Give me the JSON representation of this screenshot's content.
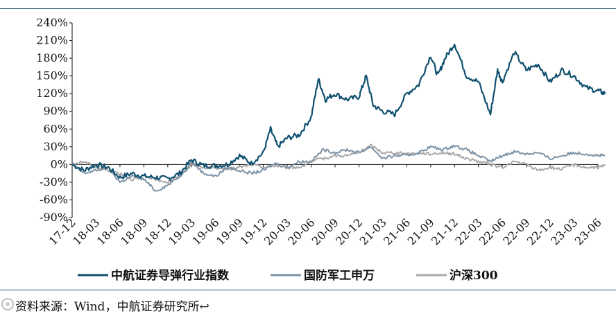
{
  "chart_data": {
    "type": "line",
    "title": "",
    "xlabel": "",
    "ylabel": "",
    "y_ticks": [
      "240%",
      "210%",
      "180%",
      "150%",
      "120%",
      "90%",
      "60%",
      "30%",
      "0%",
      "-30%",
      "-60%",
      "-90%"
    ],
    "ylim": [
      -90,
      240
    ],
    "x_ticks": [
      "17-12",
      "18-03",
      "18-06",
      "18-09",
      "18-12",
      "19-03",
      "19-06",
      "19-09",
      "19-12",
      "20-03",
      "20-06",
      "20-09",
      "20-12",
      "21-03",
      "21-06",
      "21-09",
      "21-12",
      "22-03",
      "22-06",
      "22-09",
      "22-12",
      "23-03",
      "23-06"
    ],
    "legend_position": "bottom",
    "grid": false,
    "series": [
      {
        "name": "中航证券导弹行业指数",
        "color": "#0f4f6f",
        "values": [
          [
            0,
            0
          ],
          [
            0.5,
            -10
          ],
          [
            1,
            0
          ],
          [
            1.5,
            -5
          ],
          [
            2,
            -22
          ],
          [
            2.5,
            -15
          ],
          [
            3,
            -20
          ],
          [
            3.5,
            -22
          ],
          [
            4,
            -24
          ],
          [
            4.5,
            -15
          ],
          [
            5,
            8
          ],
          [
            5.5,
            -2
          ],
          [
            6,
            -2
          ],
          [
            6.5,
            0
          ],
          [
            7,
            15
          ],
          [
            7.5,
            2
          ],
          [
            8,
            20
          ],
          [
            8.3,
            60
          ],
          [
            8.6,
            30
          ],
          [
            9,
            45
          ],
          [
            9.5,
            50
          ],
          [
            10,
            80
          ],
          [
            10.3,
            145
          ],
          [
            10.6,
            110
          ],
          [
            11,
            120
          ],
          [
            11.5,
            110
          ],
          [
            12,
            115
          ],
          [
            12.3,
            150
          ],
          [
            12.6,
            100
          ],
          [
            13,
            90
          ],
          [
            13.5,
            85
          ],
          [
            14,
            120
          ],
          [
            14.5,
            135
          ],
          [
            15,
            185
          ],
          [
            15.3,
            150
          ],
          [
            15.6,
            180
          ],
          [
            16,
            205
          ],
          [
            16.5,
            150
          ],
          [
            17,
            140
          ],
          [
            17.5,
            85
          ],
          [
            17.8,
            160
          ],
          [
            18,
            140
          ],
          [
            18.5,
            190
          ],
          [
            19,
            160
          ],
          [
            19.5,
            170
          ],
          [
            20,
            140
          ],
          [
            20.5,
            160
          ],
          [
            21,
            150
          ],
          [
            21.5,
            130
          ],
          [
            22,
            125
          ],
          [
            22.3,
            120
          ]
        ]
      },
      {
        "name": "国防军工申万",
        "color": "#7d93a6",
        "values": [
          [
            0,
            0
          ],
          [
            0.5,
            -15
          ],
          [
            1,
            -10
          ],
          [
            1.5,
            -5
          ],
          [
            2,
            -30
          ],
          [
            2.5,
            -20
          ],
          [
            3,
            -25
          ],
          [
            3.5,
            -45
          ],
          [
            4,
            -35
          ],
          [
            4.5,
            -20
          ],
          [
            5,
            5
          ],
          [
            5.5,
            -15
          ],
          [
            6,
            -20
          ],
          [
            6.5,
            -5
          ],
          [
            7,
            -10
          ],
          [
            7.5,
            -15
          ],
          [
            8,
            -10
          ],
          [
            8.5,
            2
          ],
          [
            9,
            -5
          ],
          [
            9.5,
            5
          ],
          [
            10,
            5
          ],
          [
            10.5,
            25
          ],
          [
            11,
            20
          ],
          [
            11.5,
            25
          ],
          [
            12,
            20
          ],
          [
            12.5,
            30
          ],
          [
            13,
            10
          ],
          [
            13.5,
            15
          ],
          [
            14,
            15
          ],
          [
            14.5,
            20
          ],
          [
            15,
            30
          ],
          [
            15.5,
            25
          ],
          [
            16,
            32
          ],
          [
            16.5,
            25
          ],
          [
            17,
            15
          ],
          [
            17.5,
            5
          ],
          [
            18,
            15
          ],
          [
            18.5,
            22
          ],
          [
            19,
            18
          ],
          [
            19.5,
            20
          ],
          [
            20,
            10
          ],
          [
            20.5,
            15
          ],
          [
            21,
            20
          ],
          [
            21.5,
            18
          ],
          [
            22,
            15
          ],
          [
            22.3,
            15
          ]
        ]
      },
      {
        "name": "沪深300",
        "color": "#a9a9a9",
        "values": [
          [
            0,
            0
          ],
          [
            0.5,
            5
          ],
          [
            1,
            -5
          ],
          [
            1.5,
            -10
          ],
          [
            2,
            -15
          ],
          [
            2.5,
            -25
          ],
          [
            3,
            -20
          ],
          [
            3.5,
            -25
          ],
          [
            4,
            -30
          ],
          [
            4.5,
            -20
          ],
          [
            5,
            0
          ],
          [
            5.5,
            -5
          ],
          [
            6,
            -5
          ],
          [
            6.5,
            -8
          ],
          [
            7,
            -5
          ],
          [
            7.5,
            0
          ],
          [
            8,
            -5
          ],
          [
            8.5,
            -2
          ],
          [
            9,
            -5
          ],
          [
            9.5,
            -5
          ],
          [
            10,
            5
          ],
          [
            10.5,
            10
          ],
          [
            11,
            15
          ],
          [
            11.5,
            15
          ],
          [
            12,
            20
          ],
          [
            12.5,
            32
          ],
          [
            13,
            20
          ],
          [
            13.5,
            20
          ],
          [
            14,
            18
          ],
          [
            14.5,
            20
          ],
          [
            15,
            18
          ],
          [
            15.5,
            20
          ],
          [
            16,
            18
          ],
          [
            16.5,
            10
          ],
          [
            17,
            5
          ],
          [
            17.5,
            0
          ],
          [
            18,
            -5
          ],
          [
            18.5,
            5
          ],
          [
            19,
            0
          ],
          [
            19.5,
            -10
          ],
          [
            20,
            -5
          ],
          [
            20.5,
            -8
          ],
          [
            21,
            0
          ],
          [
            21.5,
            -5
          ],
          [
            22,
            -5
          ],
          [
            22.3,
            -2
          ]
        ]
      }
    ]
  },
  "source": "资料来源：Wind，中航证券研究所↩"
}
